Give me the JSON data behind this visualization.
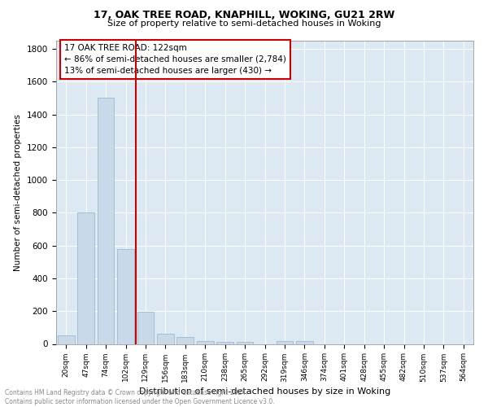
{
  "title": "17, OAK TREE ROAD, KNAPHILL, WOKING, GU21 2RW",
  "subtitle": "Size of property relative to semi-detached houses in Woking",
  "xlabel": "Distribution of semi-detached houses by size in Woking",
  "ylabel": "Number of semi-detached properties",
  "annotation_title": "17 OAK TREE ROAD: 122sqm",
  "annotation_line1": "← 86% of semi-detached houses are smaller (2,784)",
  "annotation_line2": "13% of semi-detached houses are larger (430) →",
  "vline_color": "#cc0000",
  "bar_color": "#c8daea",
  "bar_edge_color": "#a0b8cc",
  "grid_color": "#ffffff",
  "bg_color": "#dce8f2",
  "footer_text": "Contains HM Land Registry data © Crown copyright and database right 2024.\nContains public sector information licensed under the Open Government Licence v3.0.",
  "categories": [
    "20sqm",
    "47sqm",
    "74sqm",
    "102sqm",
    "129sqm",
    "156sqm",
    "183sqm",
    "210sqm",
    "238sqm",
    "265sqm",
    "292sqm",
    "319sqm",
    "346sqm",
    "374sqm",
    "401sqm",
    "428sqm",
    "455sqm",
    "482sqm",
    "510sqm",
    "537sqm",
    "564sqm"
  ],
  "values": [
    50,
    800,
    1500,
    580,
    195,
    60,
    40,
    15,
    10,
    10,
    0,
    15,
    15,
    0,
    0,
    0,
    0,
    0,
    0,
    0,
    0
  ],
  "vline_pos": 3.5,
  "ylim": [
    0,
    1850
  ],
  "yticks": [
    0,
    200,
    400,
    600,
    800,
    1000,
    1200,
    1400,
    1600,
    1800
  ]
}
